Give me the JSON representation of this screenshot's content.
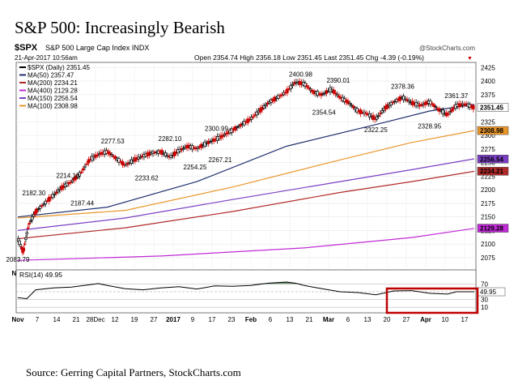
{
  "title": "S&P 500: Increasingly Bearish",
  "source": "Source: Gerring Capital Partners, StockCharts.com",
  "header": {
    "symbol": "$SPX",
    "name": "S&P 500 Large Cap Index INDX",
    "watermark": "@StockCharts.com",
    "date": "21-Apr-2017 10:56am",
    "ohlc": "Open 2354.74  High 2356.18  Low 2351.45  Last 2351.45  Chg -4.39 (-0.19%)",
    "down_arrow": "▼"
  },
  "legend": [
    {
      "label": "$SPX (Daily) 2351.45",
      "color": "#000000"
    },
    {
      "label": "MA(50) 2357.47",
      "color": "#1f2f6e"
    },
    {
      "label": "MA(200) 2234.21",
      "color": "#b02a2a"
    },
    {
      "label": "MA(400) 2129.28",
      "color": "#c12ad6"
    },
    {
      "label": "MA(150) 2256.54",
      "color": "#7a3fc4"
    },
    {
      "label": "MA(100) 2308.98",
      "color": "#e8962a"
    }
  ],
  "rsi_label": "RSI(14) 49.95",
  "chart_data": {
    "type": "candlestick",
    "y_axis": {
      "range": [
        2060,
        2430
      ],
      "ticks": [
        2075,
        2100,
        2125,
        2150,
        2175,
        2200,
        2225,
        2250,
        2275,
        2300,
        2325,
        2350,
        2375,
        2400,
        2425
      ],
      "side": "right"
    },
    "x_ticks": [
      "Nov",
      "7",
      "14",
      "21",
      "28Dec",
      "12",
      "19",
      "27",
      "2017",
      "9",
      "17",
      "23",
      "Feb",
      "6",
      "13",
      "21",
      "Mar",
      "6",
      "13",
      "20",
      "27",
      "Apr",
      "10",
      "17"
    ],
    "price": [
      {
        "t": 0,
        "v": 2110
      },
      {
        "t": 3,
        "v": 2085
      },
      {
        "t": 6,
        "v": 2135
      },
      {
        "t": 10,
        "v": 2160
      },
      {
        "t": 15,
        "v": 2175
      },
      {
        "t": 20,
        "v": 2190
      },
      {
        "t": 25,
        "v": 2205
      },
      {
        "t": 30,
        "v": 2215
      },
      {
        "t": 35,
        "v": 2230
      },
      {
        "t": 40,
        "v": 2255
      },
      {
        "t": 45,
        "v": 2265
      },
      {
        "t": 50,
        "v": 2270
      },
      {
        "t": 55,
        "v": 2258
      },
      {
        "t": 60,
        "v": 2245
      },
      {
        "t": 65,
        "v": 2255
      },
      {
        "t": 70,
        "v": 2262
      },
      {
        "t": 75,
        "v": 2268
      },
      {
        "t": 80,
        "v": 2270
      },
      {
        "t": 85,
        "v": 2260
      },
      {
        "t": 90,
        "v": 2272
      },
      {
        "t": 95,
        "v": 2280
      },
      {
        "t": 100,
        "v": 2276
      },
      {
        "t": 105,
        "v": 2285
      },
      {
        "t": 110,
        "v": 2292
      },
      {
        "t": 115,
        "v": 2300
      },
      {
        "t": 120,
        "v": 2310
      },
      {
        "t": 125,
        "v": 2320
      },
      {
        "t": 130,
        "v": 2330
      },
      {
        "t": 135,
        "v": 2345
      },
      {
        "t": 140,
        "v": 2360
      },
      {
        "t": 145,
        "v": 2370
      },
      {
        "t": 150,
        "v": 2380
      },
      {
        "t": 155,
        "v": 2398
      },
      {
        "t": 160,
        "v": 2395
      },
      {
        "t": 165,
        "v": 2380
      },
      {
        "t": 170,
        "v": 2375
      },
      {
        "t": 175,
        "v": 2385
      },
      {
        "t": 180,
        "v": 2370
      },
      {
        "t": 185,
        "v": 2360
      },
      {
        "t": 190,
        "v": 2345
      },
      {
        "t": 195,
        "v": 2340
      },
      {
        "t": 200,
        "v": 2330
      },
      {
        "t": 205,
        "v": 2350
      },
      {
        "t": 210,
        "v": 2362
      },
      {
        "t": 215,
        "v": 2370
      },
      {
        "t": 220,
        "v": 2360
      },
      {
        "t": 225,
        "v": 2355
      },
      {
        "t": 230,
        "v": 2362
      },
      {
        "t": 235,
        "v": 2348
      },
      {
        "t": 240,
        "v": 2338
      },
      {
        "t": 245,
        "v": 2355
      },
      {
        "t": 250,
        "v": 2358
      },
      {
        "t": 255,
        "v": 2351
      }
    ],
    "series": [
      {
        "name": "MA(50)",
        "color": "#1f2f6e",
        "points": [
          [
            0,
            2150
          ],
          [
            50,
            2168
          ],
          [
            100,
            2215
          ],
          [
            150,
            2280
          ],
          [
            200,
            2320
          ],
          [
            230,
            2345
          ],
          [
            255,
            2357
          ]
        ]
      },
      {
        "name": "MA(100)",
        "color": "#e8962a",
        "points": [
          [
            0,
            2148
          ],
          [
            60,
            2162
          ],
          [
            120,
            2205
          ],
          [
            180,
            2255
          ],
          [
            220,
            2287
          ],
          [
            255,
            2309
          ]
        ]
      },
      {
        "name": "MA(150)",
        "color": "#7a3fc4",
        "points": [
          [
            0,
            2125
          ],
          [
            60,
            2148
          ],
          [
            120,
            2182
          ],
          [
            180,
            2215
          ],
          [
            220,
            2237
          ],
          [
            255,
            2257
          ]
        ]
      },
      {
        "name": "MA(200)",
        "color": "#b02a2a",
        "points": [
          [
            0,
            2110
          ],
          [
            60,
            2130
          ],
          [
            120,
            2160
          ],
          [
            180,
            2195
          ],
          [
            220,
            2215
          ],
          [
            255,
            2234
          ]
        ]
      },
      {
        "name": "MA(400)",
        "color": "#c12ad6",
        "points": [
          [
            0,
            2070
          ],
          [
            80,
            2078
          ],
          [
            160,
            2093
          ],
          [
            220,
            2112
          ],
          [
            255,
            2129
          ]
        ]
      }
    ],
    "annotations": [
      {
        "t": 0,
        "v": 2083.79,
        "label": "2083.79",
        "pos": "below"
      },
      {
        "t": 9,
        "v": 2182.3,
        "label": "2182.30",
        "pos": "above"
      },
      {
        "t": 28,
        "v": 2214.1,
        "label": "2214.10",
        "pos": "above"
      },
      {
        "t": 36,
        "v": 2187.44,
        "label": "2187.44",
        "pos": "below"
      },
      {
        "t": 53,
        "v": 2277.53,
        "label": "2277.53",
        "pos": "above"
      },
      {
        "t": 72,
        "v": 2233.62,
        "label": "2233.62",
        "pos": "below"
      },
      {
        "t": 85,
        "v": 2282.1,
        "label": "2282.10",
        "pos": "above"
      },
      {
        "t": 99,
        "v": 2254.25,
        "label": "2254.25",
        "pos": "below"
      },
      {
        "t": 111,
        "v": 2300.99,
        "label": "2300.99",
        "pos": "above"
      },
      {
        "t": 113,
        "v": 2267.21,
        "label": "2267.21",
        "pos": "below"
      },
      {
        "t": 158,
        "v": 2400.98,
        "label": "2400.98",
        "pos": "above"
      },
      {
        "t": 179,
        "v": 2390.01,
        "label": "2390.01",
        "pos": "above"
      },
      {
        "t": 171,
        "v": 2354.54,
        "label": "2354.54",
        "pos": "below"
      },
      {
        "t": 200,
        "v": 2322.25,
        "label": "2322.25",
        "pos": "below"
      },
      {
        "t": 215,
        "v": 2378.36,
        "label": "2378.36",
        "pos": "above"
      },
      {
        "t": 230,
        "v": 2328.95,
        "label": "2328.95",
        "pos": "below"
      },
      {
        "t": 245,
        "v": 2361.37,
        "label": "2361.37",
        "pos": "above"
      }
    ],
    "right_labels": [
      {
        "label": "2351.45",
        "v": 2351.45,
        "color": "#000000",
        "bg": "#ffffff"
      },
      {
        "label": "2308.98",
        "v": 2308.98,
        "color": "#000000",
        "bg": "#e8962a"
      },
      {
        "label": "2256.54",
        "v": 2256.54,
        "color": "#000000",
        "bg": "#7a3fc4"
      },
      {
        "label": "2234.21",
        "v": 2234.21,
        "color": "#000000",
        "bg": "#b02a2a"
      },
      {
        "label": "2129.28",
        "v": 2129.28,
        "color": "#000000",
        "bg": "#c12ad6"
      }
    ],
    "rsi": {
      "range": [
        0,
        100
      ],
      "ticks": [
        10,
        30,
        50,
        70
      ],
      "current": "49.95",
      "values": [
        [
          0,
          35
        ],
        [
          5,
          32
        ],
        [
          10,
          55
        ],
        [
          20,
          60
        ],
        [
          30,
          62
        ],
        [
          40,
          68
        ],
        [
          45,
          71
        ],
        [
          50,
          66
        ],
        [
          60,
          58
        ],
        [
          70,
          55
        ],
        [
          80,
          60
        ],
        [
          90,
          63
        ],
        [
          100,
          57
        ],
        [
          110,
          65
        ],
        [
          120,
          64
        ],
        [
          130,
          66
        ],
        [
          140,
          72
        ],
        [
          150,
          75
        ],
        [
          155,
          72
        ],
        [
          160,
          66
        ],
        [
          170,
          58
        ],
        [
          180,
          50
        ],
        [
          190,
          48
        ],
        [
          200,
          42
        ],
        [
          210,
          52
        ],
        [
          220,
          53
        ],
        [
          230,
          46
        ],
        [
          240,
          44
        ],
        [
          245,
          50
        ],
        [
          255,
          50
        ]
      ]
    }
  }
}
